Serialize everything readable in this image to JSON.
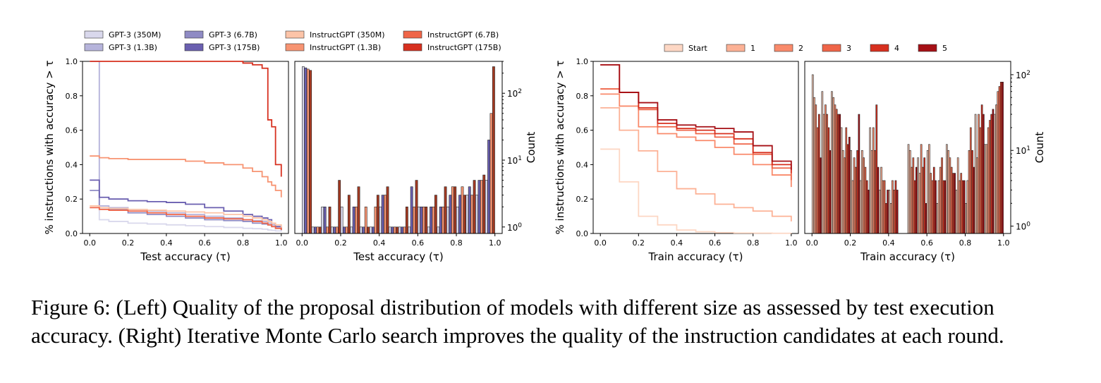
{
  "figure": {
    "caption": "Figure 6: (Left) Quality of the proposal distribution of models with different size as assessed by test execution accuracy. (Right) Iterative Monte Carlo search improves the quality of the instruction candidates at each round."
  },
  "chart_data": [
    {
      "id": "left_cdf",
      "type": "line",
      "step": true,
      "xlabel": "Test accuracy (τ)",
      "ylabel": "% instructions with accuracy > τ",
      "xlim": [
        0,
        1
      ],
      "ylim": [
        0,
        1
      ],
      "xticks": [
        "0.0",
        "0.2",
        "0.4",
        "0.6",
        "0.8",
        "1.0"
      ],
      "yticks": [
        "0.0",
        "0.2",
        "0.4",
        "0.6",
        "0.8",
        "1.0"
      ],
      "legend": "top-outside",
      "grid": false,
      "x": [
        0.0,
        0.05,
        0.1,
        0.2,
        0.3,
        0.4,
        0.5,
        0.6,
        0.7,
        0.8,
        0.85,
        0.9,
        0.93,
        0.95,
        0.97,
        1.0
      ],
      "series": [
        {
          "name": "GPT-3 (350M)",
          "color": "#d9d8ec",
          "values": [
            1.0,
            0.08,
            0.07,
            0.06,
            0.055,
            0.05,
            0.045,
            0.04,
            0.035,
            0.03,
            0.028,
            0.025,
            0.02,
            0.018,
            0.015,
            0.01
          ]
        },
        {
          "name": "GPT-3 (1.3B)",
          "color": "#b6b4db",
          "values": [
            1.0,
            0.16,
            0.15,
            0.14,
            0.13,
            0.12,
            0.11,
            0.1,
            0.09,
            0.08,
            0.075,
            0.07,
            0.06,
            0.05,
            0.04,
            0.02
          ]
        },
        {
          "name": "GPT-3 (6.7B)",
          "color": "#8f8bc4",
          "values": [
            0.25,
            0.15,
            0.14,
            0.12,
            0.11,
            0.1,
            0.09,
            0.08,
            0.075,
            0.07,
            0.06,
            0.055,
            0.05,
            0.04,
            0.03,
            0.02
          ]
        },
        {
          "name": "GPT-3 (175B)",
          "color": "#6a5fb0",
          "values": [
            0.31,
            0.21,
            0.2,
            0.19,
            0.185,
            0.18,
            0.17,
            0.15,
            0.13,
            0.11,
            0.1,
            0.09,
            0.08,
            0.06,
            0.04,
            0.02
          ]
        },
        {
          "name": "InstructGPT (350M)",
          "color": "#fcc4a8",
          "values": [
            0.16,
            0.15,
            0.145,
            0.14,
            0.135,
            0.13,
            0.125,
            0.12,
            0.11,
            0.1,
            0.09,
            0.08,
            0.07,
            0.06,
            0.05,
            0.03
          ]
        },
        {
          "name": "InstructGPT (1.3B)",
          "color": "#f79472",
          "values": [
            0.45,
            0.44,
            0.435,
            0.43,
            0.43,
            0.43,
            0.42,
            0.41,
            0.4,
            0.38,
            0.36,
            0.33,
            0.3,
            0.28,
            0.25,
            0.21
          ]
        },
        {
          "name": "InstructGPT (6.7B)",
          "color": "#ef6548",
          "values": [
            0.15,
            0.14,
            0.135,
            0.13,
            0.12,
            0.11,
            0.1,
            0.09,
            0.085,
            0.08,
            0.07,
            0.06,
            0.05,
            0.04,
            0.03,
            0.02
          ]
        },
        {
          "name": "InstructGPT (175B)",
          "color": "#d7301f",
          "values": [
            1.0,
            1.0,
            1.0,
            1.0,
            1.0,
            1.0,
            1.0,
            1.0,
            1.0,
            0.99,
            0.98,
            0.96,
            0.66,
            0.62,
            0.4,
            0.33
          ]
        }
      ]
    },
    {
      "id": "left_hist",
      "type": "bar",
      "xlabel": "Test accuracy (τ)",
      "ylabel": "Count",
      "yscale": "log",
      "xlim": [
        0,
        1
      ],
      "ylim": [
        0.8,
        300
      ],
      "xticks": [
        "0.0",
        "0.2",
        "0.4",
        "0.6",
        "0.8",
        "1.0"
      ],
      "yticks": [
        "10^0",
        "10^1",
        "10^2"
      ],
      "bins": [
        0.0,
        0.05,
        0.1,
        0.15,
        0.2,
        0.25,
        0.3,
        0.35,
        0.4,
        0.45,
        0.5,
        0.55,
        0.6,
        0.65,
        0.7,
        0.75,
        0.8,
        0.85,
        0.9,
        0.95
      ],
      "series": [
        {
          "name": "GPT-3 (350M)",
          "color": "#d9d8ec",
          "values": [
            250,
            1,
            2,
            1,
            2,
            1,
            1,
            1,
            2,
            1,
            1,
            1,
            2,
            1,
            1,
            2,
            2,
            3,
            3,
            5
          ]
        },
        {
          "name": "GPT-3 (175B)",
          "color": "#6a5fb0",
          "values": [
            240,
            1,
            2,
            1,
            1,
            2,
            1,
            1,
            3,
            1,
            1,
            4,
            2,
            2,
            2,
            3,
            3,
            4,
            5,
            20
          ]
        },
        {
          "name": "InstructGPT (1.3B)",
          "color": "#f79472",
          "values": [
            230,
            1,
            1,
            1,
            1,
            2,
            2,
            2,
            3,
            1,
            1,
            2,
            2,
            2,
            2,
            4,
            4,
            3,
            5,
            50
          ]
        },
        {
          "name": "InstructGPT (175B)",
          "color": "#a63a22",
          "values": [
            220,
            1,
            2,
            5,
            3,
            4,
            1,
            3,
            4,
            1,
            2,
            5,
            2,
            3,
            4,
            4,
            3,
            5,
            6,
            250
          ]
        }
      ]
    },
    {
      "id": "right_cdf",
      "type": "line",
      "step": true,
      "xlabel": "Train accuracy (τ)",
      "ylabel": "% instructions with accuracy > τ",
      "xlim": [
        0,
        1
      ],
      "ylim": [
        0,
        1
      ],
      "xticks": [
        "0.0",
        "0.2",
        "0.4",
        "0.6",
        "0.8",
        "1.0"
      ],
      "yticks": [
        "0.0",
        "0.2",
        "0.4",
        "0.6",
        "0.8",
        "1.0"
      ],
      "legend": "top-outside",
      "grid": false,
      "x": [
        0.0,
        0.1,
        0.2,
        0.3,
        0.4,
        0.5,
        0.6,
        0.7,
        0.8,
        0.9,
        1.0
      ],
      "series": [
        {
          "name": "Start",
          "color": "#fdd7c4",
          "values": [
            0.49,
            0.3,
            0.1,
            0.05,
            0.02,
            0.01,
            0.005,
            0.003,
            0.002,
            0.001,
            0.0
          ]
        },
        {
          "name": "1",
          "color": "#fcb195",
          "values": [
            0.73,
            0.6,
            0.48,
            0.36,
            0.26,
            0.23,
            0.17,
            0.15,
            0.13,
            0.1,
            0.07
          ]
        },
        {
          "name": "2",
          "color": "#f98a6b",
          "values": [
            0.81,
            0.74,
            0.62,
            0.58,
            0.56,
            0.54,
            0.5,
            0.46,
            0.4,
            0.34,
            0.27
          ]
        },
        {
          "name": "3",
          "color": "#ef6548",
          "values": [
            0.84,
            0.82,
            0.72,
            0.62,
            0.6,
            0.58,
            0.56,
            0.52,
            0.46,
            0.38,
            0.31
          ]
        },
        {
          "name": "4",
          "color": "#d7301f",
          "values": [
            0.98,
            0.82,
            0.73,
            0.64,
            0.61,
            0.6,
            0.58,
            0.55,
            0.47,
            0.4,
            0.35
          ]
        },
        {
          "name": "5",
          "color": "#a50f15",
          "values": [
            0.98,
            0.82,
            0.76,
            0.66,
            0.63,
            0.62,
            0.61,
            0.59,
            0.51,
            0.42,
            0.37
          ]
        }
      ]
    },
    {
      "id": "right_hist",
      "type": "bar",
      "xlabel": "Train accuracy (τ)",
      "ylabel": "Count",
      "yscale": "log",
      "xlim": [
        0,
        1
      ],
      "ylim": [
        0.8,
        150
      ],
      "xticks": [
        "0.0",
        "0.2",
        "0.4",
        "0.6",
        "0.8",
        "1.0"
      ],
      "yticks": [
        "10^0",
        "10^1",
        "10^2"
      ],
      "bins": [
        0.0,
        0.05,
        0.1,
        0.15,
        0.2,
        0.25,
        0.3,
        0.35,
        0.4,
        0.45,
        0.5,
        0.55,
        0.6,
        0.65,
        0.7,
        0.75,
        0.8,
        0.85,
        0.9,
        0.95
      ],
      "series": [
        {
          "name": "Start",
          "color": "#e8c1b1",
          "values": [
            100,
            60,
            60,
            20,
            10,
            4,
            20,
            3,
            3,
            0,
            12,
            8,
            10,
            2,
            12,
            3,
            2,
            30,
            12,
            30
          ]
        },
        {
          "name": "1",
          "color": "#fcb195",
          "values": [
            50,
            30,
            50,
            10,
            4,
            10,
            10,
            6,
            2,
            0,
            10,
            5,
            12,
            4,
            10,
            8,
            4,
            8,
            12,
            40
          ]
        },
        {
          "name": "2",
          "color": "#f98a6b",
          "values": [
            40,
            40,
            40,
            8,
            8,
            8,
            20,
            4,
            4,
            0,
            6,
            12,
            5,
            6,
            8,
            4,
            10,
            30,
            20,
            60
          ]
        },
        {
          "name": "3",
          "color": "#ef6548",
          "values": [
            20,
            30,
            35,
            20,
            6,
            6,
            10,
            4,
            3,
            0,
            8,
            6,
            4,
            8,
            6,
            5,
            20,
            20,
            25,
            70
          ]
        },
        {
          "name": "4",
          "color": "#d7301f",
          "values": [
            30,
            20,
            30,
            12,
            10,
            4,
            40,
            2,
            4,
            0,
            4,
            8,
            6,
            4,
            5,
            4,
            10,
            40,
            30,
            80
          ]
        },
        {
          "name": "5",
          "color": "#a50f15",
          "values": [
            8,
            10,
            30,
            15,
            30,
            3,
            6,
            3,
            3,
            0,
            6,
            2,
            4,
            4,
            5,
            4,
            6,
            30,
            35,
            80
          ]
        }
      ]
    }
  ]
}
